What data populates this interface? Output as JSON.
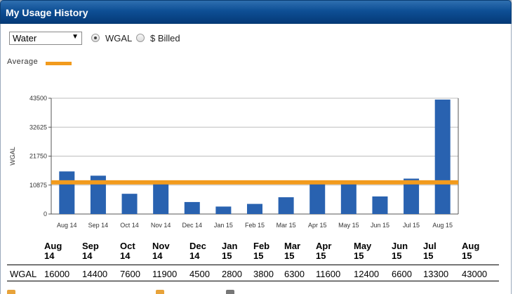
{
  "header": {
    "title": "My Usage History"
  },
  "controls": {
    "service_select": "Water",
    "radio_wgal": "WGAL",
    "radio_billed": "$ Billed",
    "selected": "WGAL"
  },
  "legend": {
    "average_label": "Average",
    "average_color": "#f29b1d"
  },
  "colors": {
    "bar": "#2962b0",
    "average": "#f29b1d",
    "header": "#0e4f95"
  },
  "chart_data": {
    "type": "bar",
    "ylabel": "WGAL",
    "ylim": [
      0,
      43500
    ],
    "yticks": [
      "0",
      "10875",
      "21750",
      "32625",
      "43500"
    ],
    "grid": true,
    "categories": [
      "Aug 14",
      "Sep 14",
      "Oct 14",
      "Nov 14",
      "Dec 14",
      "Jan 15",
      "Feb 15",
      "Mar 15",
      "Apr 15",
      "May 15",
      "Jun 15",
      "Jul 15",
      "Aug 15"
    ],
    "values": [
      16000,
      14400,
      7600,
      11900,
      4500,
      2800,
      3800,
      6300,
      11600,
      12400,
      6600,
      13300,
      43000
    ],
    "average": 11900
  },
  "table": {
    "row_label": "WGAL",
    "headers": [
      [
        "Aug",
        "14"
      ],
      [
        "Sep",
        "14"
      ],
      [
        "Oct",
        "14"
      ],
      [
        "Nov",
        "14"
      ],
      [
        "Dec",
        "14"
      ],
      [
        "Jan",
        "15"
      ],
      [
        "Feb",
        "15"
      ],
      [
        "Mar",
        "15"
      ],
      [
        "Apr",
        "15"
      ],
      [
        "May",
        "15"
      ],
      [
        "Jun",
        "15"
      ],
      [
        "Jul",
        "15"
      ],
      [
        "Aug",
        "15"
      ]
    ],
    "values": [
      "16000",
      "14400",
      "7600",
      "11900",
      "4500",
      "2800",
      "3800",
      "6300",
      "11600",
      "12400",
      "6600",
      "13300",
      "43000"
    ]
  }
}
